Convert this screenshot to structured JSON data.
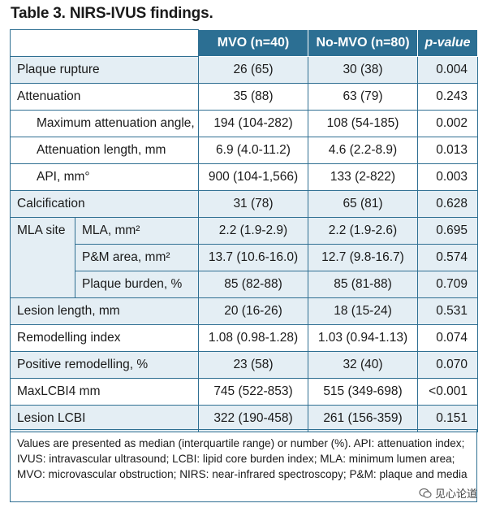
{
  "title": "Table 3. NIRS-IVUS findings.",
  "header": {
    "c1": "MVO (n=40)",
    "c2": "No-MVO (n=80)",
    "c3": "p-value"
  },
  "rows": {
    "r0": {
      "label": "Plaque rupture",
      "mvo": "26 (65)",
      "nomvo": "30 (38)",
      "p": "0.004"
    },
    "r1": {
      "label": "Attenuation",
      "mvo": "35 (88)",
      "nomvo": "63 (79)",
      "p": "0.243"
    },
    "r2": {
      "label": "Maximum attenuation angle, °",
      "mvo": "194 (104-282)",
      "nomvo": "108 (54-185)",
      "p": "0.002"
    },
    "r3": {
      "label": "Attenuation length, mm",
      "mvo": "6.9 (4.0-11.2)",
      "nomvo": "4.6 (2.2-8.9)",
      "p": "0.013"
    },
    "r4": {
      "label": "API, mm°",
      "mvo": "900 (104-1,566)",
      "nomvo": "133 (2-822)",
      "p": "0.003"
    },
    "r5": {
      "label": "Calcification",
      "mvo": "31 (78)",
      "nomvo": "65 (81)",
      "p": "0.628"
    },
    "mla_site": "MLA site",
    "r6": {
      "label": "MLA, mm²",
      "mvo": "2.2 (1.9-2.9)",
      "nomvo": "2.2 (1.9-2.6)",
      "p": "0.695"
    },
    "r7": {
      "label": "P&M area, mm²",
      "mvo": "13.7 (10.6-16.0)",
      "nomvo": "12.7 (9.8-16.7)",
      "p": "0.574"
    },
    "r8": {
      "label": "Plaque burden, %",
      "mvo": "85 (82-88)",
      "nomvo": "85 (81-88)",
      "p": "0.709"
    },
    "r9": {
      "label": "Lesion length, mm",
      "mvo": "20 (16-26)",
      "nomvo": "18 (15-24)",
      "p": "0.531"
    },
    "r10": {
      "label": "Remodelling index",
      "mvo": "1.08 (0.98-1.28)",
      "nomvo": "1.03 (0.94-1.13)",
      "p": "0.074"
    },
    "r11": {
      "label": "Positive remodelling, %",
      "mvo": "23 (58)",
      "nomvo": "32 (40)",
      "p": "0.070"
    },
    "r12": {
      "label": "MaxLCBI4 mm",
      "mvo": "745 (522-853)",
      "nomvo": "515 (349-698)",
      "p": "<0.001"
    },
    "r13": {
      "label": "Lesion LCBI",
      "mvo": "322 (190-458)",
      "nomvo": "261 (156-359)",
      "p": "0.151"
    }
  },
  "footnote": "Values are presented as median (interquartile range) or number (%). API: attenuation index; IVUS: intravascular ultrasound; LCBI: lipid core burden index; MLA: minimum lumen area; MVO: microvascular obstruction; NIRS: near-infrared spectroscopy; P&M: plaque and media",
  "watermark": "见心论道",
  "colors": {
    "header_bg": "#2c6f93",
    "shade_bg": "#e4eef4",
    "border": "#2f6f92"
  }
}
